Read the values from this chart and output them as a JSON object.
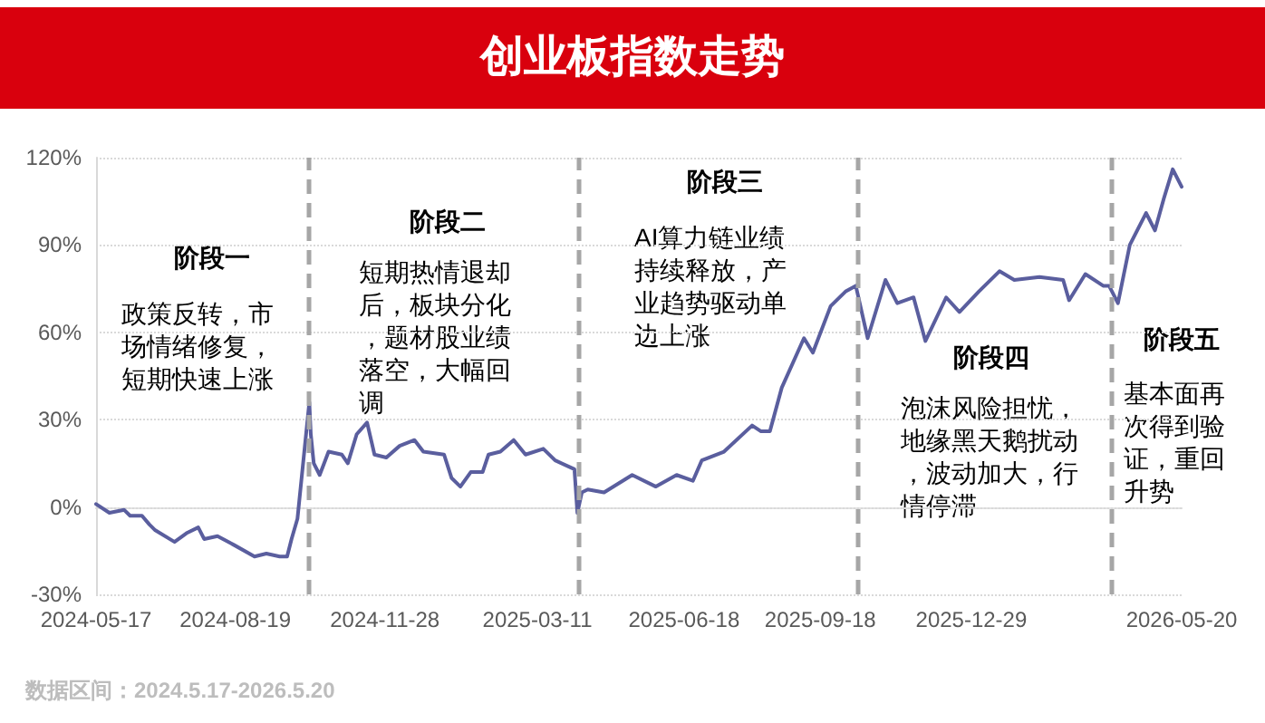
{
  "chart_data": {
    "type": "line",
    "title": "创业板指数走势",
    "x": [
      "2024-05-17",
      "2024-05-26",
      "2024-06-05",
      "2024-06-09",
      "2024-06-17",
      "2024-06-22",
      "2024-06-26",
      "2024-07-09",
      "2024-07-17",
      "2024-07-25",
      "2024-07-29",
      "2024-08-07",
      "2024-08-18",
      "2024-09-01",
      "2024-09-09",
      "2024-09-18",
      "2024-09-23",
      "2024-09-26",
      "2024-09-30",
      "2024-10-08",
      "2024-10-09",
      "2024-10-11",
      "2024-10-15",
      "2024-10-21",
      "2024-10-30",
      "2024-11-03",
      "2024-11-09",
      "2024-11-16",
      "2024-11-21",
      "2024-11-29",
      "2024-12-08",
      "2024-12-18",
      "2024-12-24",
      "2025-01-07",
      "2025-01-12",
      "2025-01-18",
      "2025-01-25",
      "2025-02-02",
      "2025-02-06",
      "2025-02-14",
      "2025-02-23",
      "2025-03-03",
      "2025-03-15",
      "2025-03-23",
      "2025-04-05",
      "2025-04-07",
      "2025-04-10",
      "2025-04-14",
      "2025-04-25",
      "2025-05-14",
      "2025-05-30",
      "2025-06-13",
      "2025-06-24",
      "2025-06-30",
      "2025-07-15",
      "2025-08-03",
      "2025-08-09",
      "2025-08-15",
      "2025-08-23",
      "2025-09-07",
      "2025-09-13",
      "2025-09-25",
      "2025-10-05",
      "2025-10-12",
      "2025-10-20",
      "2025-11-01",
      "2025-11-09",
      "2025-11-20",
      "2025-11-28",
      "2025-12-12",
      "2025-12-21",
      "2026-01-03",
      "2026-01-17",
      "2026-01-27",
      "2026-02-13",
      "2026-03-01",
      "2026-03-05",
      "2026-03-16",
      "2026-03-28",
      "2026-04-01",
      "2026-04-07",
      "2026-04-15",
      "2026-04-26",
      "2026-05-02",
      "2026-05-08",
      "2026-05-14",
      "2026-05-20"
    ],
    "series": [
      {
        "color": "#5a5e9e",
        "values": [
          1,
          -2,
          -1,
          -3,
          -3,
          -6,
          -8,
          -12,
          -9,
          -7,
          -11,
          -10,
          -13,
          -17,
          -16,
          -17,
          -17,
          -11,
          -4,
          36,
          25,
          15,
          11,
          19,
          18,
          15,
          25,
          29,
          18,
          17,
          21,
          23,
          19,
          18,
          10,
          7,
          12,
          12,
          18,
          19,
          23,
          18,
          20,
          16,
          13,
          -2,
          5,
          6,
          5,
          11,
          7,
          11,
          9,
          16,
          19,
          28,
          26,
          26,
          41,
          58,
          53,
          69,
          74,
          76,
          58,
          78,
          70,
          72,
          57,
          72,
          67,
          74,
          81,
          78,
          79,
          78,
          71,
          80,
          76,
          76,
          70,
          90,
          101,
          95,
          106,
          116,
          110
        ]
      }
    ],
    "xlim": [
      "2024-05-17",
      "2026-05-20"
    ],
    "xticks": [
      "2024-05-17",
      "2024-08-19",
      "2024-11-28",
      "2025-03-11",
      "2025-06-18",
      "2025-09-18",
      "2025-12-29",
      "2026-05-20"
    ],
    "ylim": [
      -30,
      120
    ],
    "yticks": [
      {
        "value": -30,
        "label": "-30%"
      },
      {
        "value": 0,
        "label": "0%"
      },
      {
        "value": 30,
        "label": "30%"
      },
      {
        "value": 60,
        "label": "60%"
      },
      {
        "value": 90,
        "label": "90%"
      },
      {
        "value": 120,
        "label": "120%"
      }
    ],
    "grid": "y",
    "marker": "none",
    "line_style": "solid",
    "ref_lines": [
      {
        "axis": "x",
        "value": "2024-10-08",
        "color": "#a6a6a6",
        "line_style": "dashed"
      },
      {
        "axis": "x",
        "value": "2025-04-08",
        "color": "#a6a6a6",
        "line_style": "dashed"
      },
      {
        "axis": "x",
        "value": "2025-10-13",
        "color": "#a6a6a6",
        "line_style": "dashed"
      },
      {
        "axis": "x",
        "value": "2026-04-03",
        "color": "#a6a6a6",
        "line_style": "dashed"
      }
    ],
    "annotations": [
      "阶段一",
      "政策反转，市场情绪修复，短期快速上涨",
      "阶段二",
      "短期热情退却后，板块分化，题材股业绩落空，大幅回调",
      "阶段三",
      "AI算力链业绩持续释放，产业趋势驱动单边上涨",
      "阶段四",
      "泡沫风险担忧，地缘黑天鹅扰动，波动加大，行情停滞",
      "阶段五",
      "基本面再次得到验证，重回升势",
      "数据区间：2024.5.17-2026.5.20"
    ]
  }
}
